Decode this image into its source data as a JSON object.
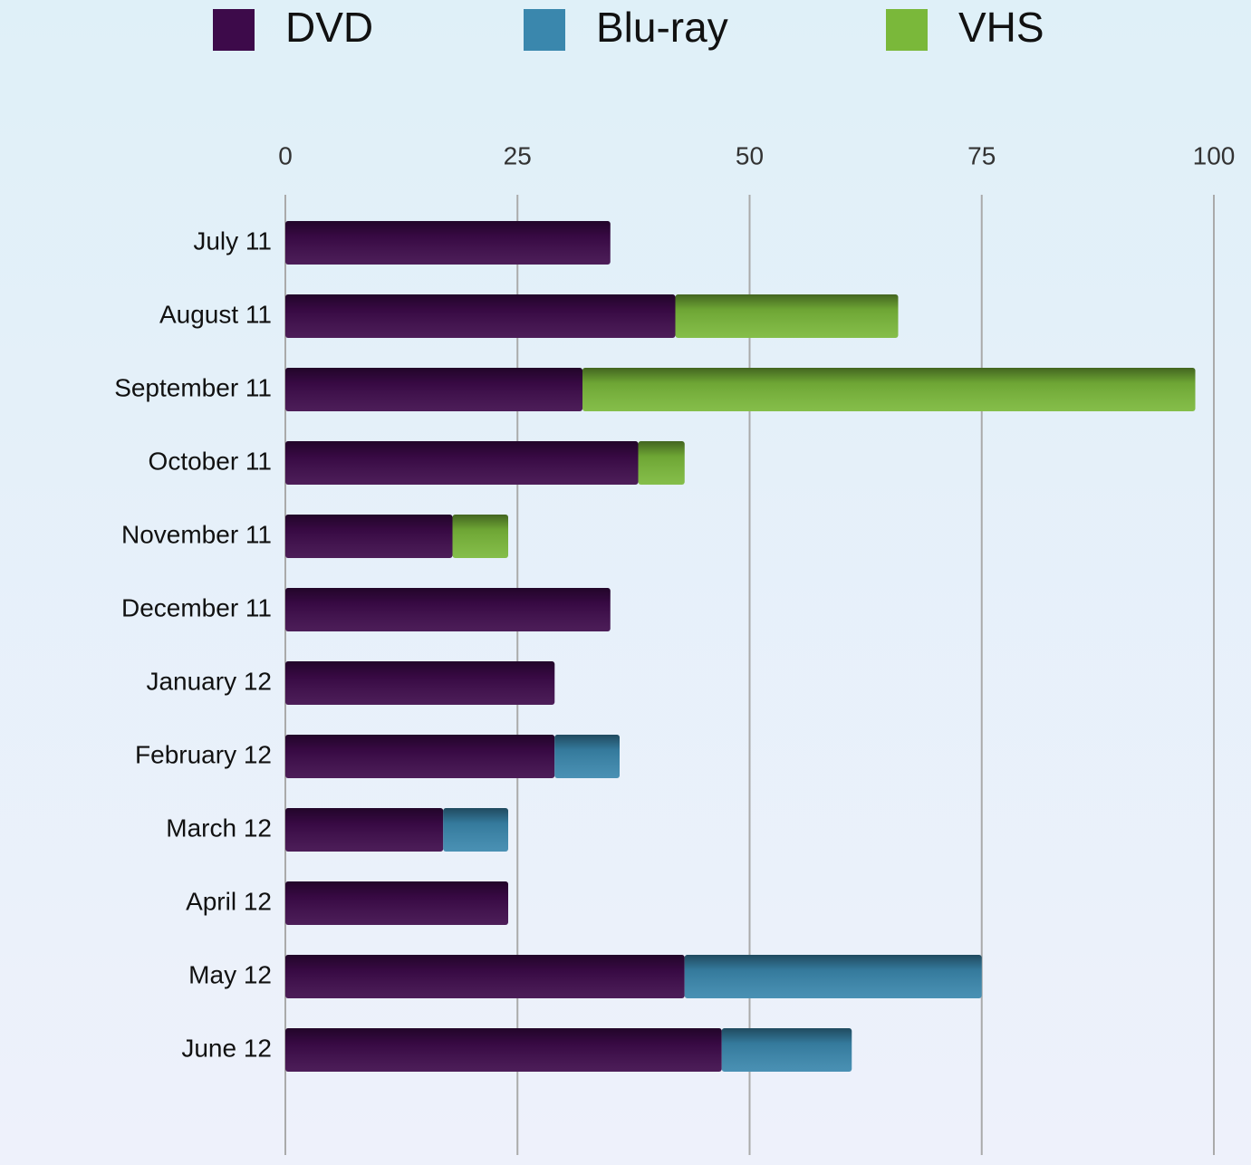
{
  "chart_data": {
    "type": "bar",
    "orientation": "horizontal",
    "stacked": true,
    "categories": [
      "July 11",
      "August 11",
      "September 11",
      "October 11",
      "November 11",
      "December 11",
      "January 12",
      "February 12",
      "March 12",
      "April 12",
      "May 12",
      "June 12"
    ],
    "series": [
      {
        "name": "DVD",
        "color": "#3d0a4a",
        "values": [
          35,
          42,
          32,
          38,
          18,
          35,
          29,
          29,
          17,
          24,
          43,
          47
        ]
      },
      {
        "name": "Blu-ray",
        "color": "#3a87ad",
        "values": [
          null,
          null,
          null,
          null,
          null,
          null,
          null,
          7,
          7,
          null,
          32,
          14
        ]
      },
      {
        "name": "VHS",
        "color": "#7ab83a",
        "values": [
          null,
          24,
          66,
          5,
          6,
          null,
          null,
          null,
          null,
          null,
          null,
          null
        ]
      }
    ],
    "xlim": [
      0,
      100
    ],
    "xticks": [
      0,
      25,
      50,
      75,
      100
    ],
    "grid": true,
    "legend": "top"
  }
}
